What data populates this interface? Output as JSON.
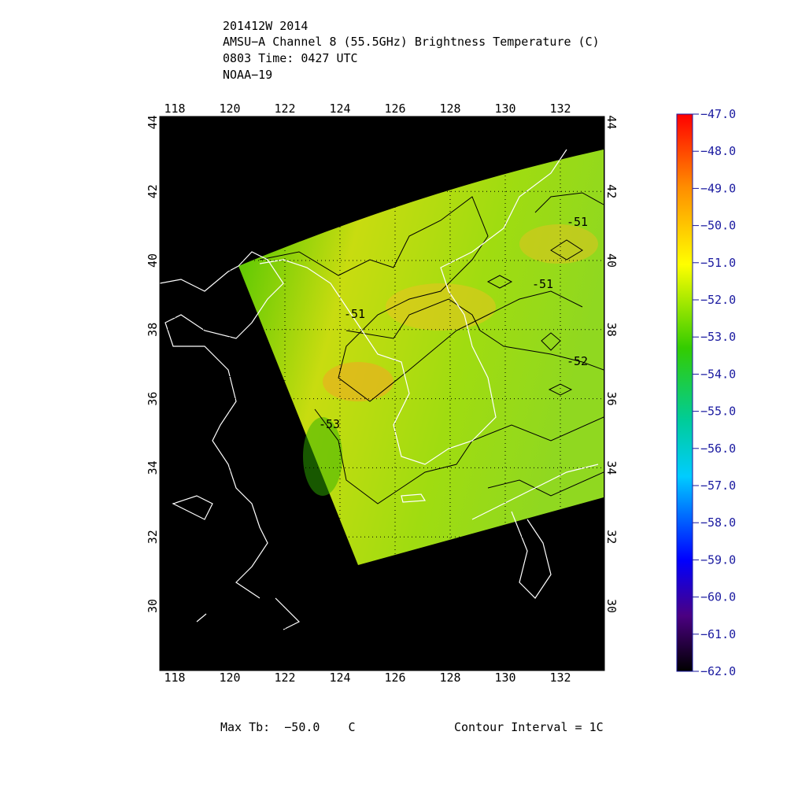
{
  "header": {
    "lines": [
      "201412W 2014",
      "AMSU−A Channel 8 (55.5GHz) Brightness Temperature (C)",
      "0803 Time: 0427 UTC",
      "NOAA−19"
    ]
  },
  "map": {
    "lon_ticks": [
      118,
      120,
      122,
      124,
      126,
      128,
      130,
      132
    ],
    "lat_ticks": [
      30,
      32,
      34,
      36,
      38,
      40,
      42,
      44
    ],
    "contour_labels": [
      "-51",
      "-51",
      "-51",
      "-52",
      "-53"
    ]
  },
  "colorbar": {
    "ticks": [
      {
        "value": -47,
        "label": "−47.0"
      },
      {
        "value": -48,
        "label": "−48.0"
      },
      {
        "value": -49,
        "label": "−49.0"
      },
      {
        "value": -50,
        "label": "−50.0"
      },
      {
        "value": -51,
        "label": "−51.0"
      },
      {
        "value": -52,
        "label": "−52.0"
      },
      {
        "value": -53,
        "label": "−53.0"
      },
      {
        "value": -54,
        "label": "−54.0"
      },
      {
        "value": -55,
        "label": "−55.0"
      },
      {
        "value": -56,
        "label": "−56.0"
      },
      {
        "value": -57,
        "label": "−57.0"
      },
      {
        "value": -58,
        "label": "−58.0"
      },
      {
        "value": -59,
        "label": "−59.0"
      },
      {
        "value": -60,
        "label": "−60.0"
      },
      {
        "value": -61,
        "label": "−61.0"
      },
      {
        "value": -62,
        "label": "−62.0"
      }
    ]
  },
  "footer": {
    "max_tb": "Max Tb:  −50.0    C",
    "contour_interval": "Contour Interval = 1C"
  }
}
